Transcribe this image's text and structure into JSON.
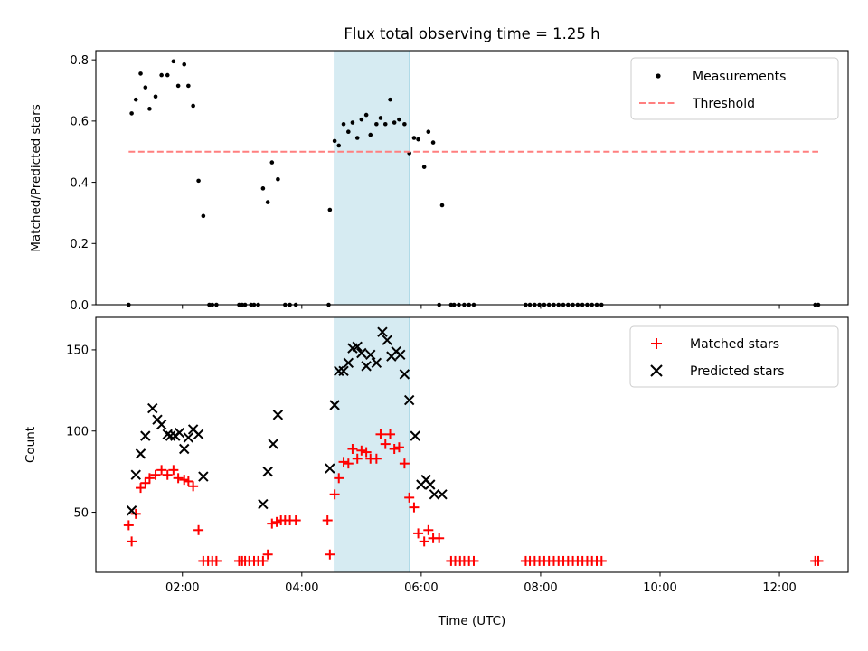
{
  "chart_data": [
    {
      "type": "scatter",
      "title": "Flux total observing time = 1.25 h",
      "xlabel": "",
      "ylabel": "Matched/Predicted stars",
      "xlim": [
        0.55,
        13.15
      ],
      "ylim": [
        0.0,
        0.83
      ],
      "x_ticks": [
        2,
        4,
        6,
        8,
        10,
        12
      ],
      "y_ticks": [
        0.0,
        0.2,
        0.4,
        0.6,
        0.8
      ],
      "y_tick_labels": [
        "0.0",
        "0.2",
        "0.4",
        "0.6",
        "0.8"
      ],
      "shaded_span": [
        4.55,
        5.8
      ],
      "legend_position": "top-right",
      "series": [
        {
          "name": "Measurements",
          "marker": "dot",
          "color": "#000000",
          "points": [
            [
              1.1,
              0.0
            ],
            [
              1.15,
              0.625
            ],
            [
              1.22,
              0.67
            ],
            [
              1.3,
              0.755
            ],
            [
              1.38,
              0.71
            ],
            [
              1.45,
              0.64
            ],
            [
              1.55,
              0.68
            ],
            [
              1.65,
              0.75
            ],
            [
              1.75,
              0.75
            ],
            [
              1.85,
              0.795
            ],
            [
              1.93,
              0.715
            ],
            [
              2.03,
              0.785
            ],
            [
              2.1,
              0.715
            ],
            [
              2.18,
              0.65
            ],
            [
              2.27,
              0.405
            ],
            [
              2.35,
              0.29
            ],
            [
              2.45,
              0.0
            ],
            [
              2.5,
              0.0
            ],
            [
              2.57,
              0.0
            ],
            [
              2.95,
              0.0
            ],
            [
              3.0,
              0.0
            ],
            [
              3.05,
              0.0
            ],
            [
              3.15,
              0.0
            ],
            [
              3.2,
              0.0
            ],
            [
              3.27,
              0.0
            ],
            [
              3.35,
              0.38
            ],
            [
              3.43,
              0.335
            ],
            [
              3.5,
              0.465
            ],
            [
              3.6,
              0.41
            ],
            [
              3.72,
              0.0
            ],
            [
              3.8,
              0.0
            ],
            [
              3.9,
              0.0
            ],
            [
              4.45,
              0.0
            ],
            [
              4.47,
              0.31
            ],
            [
              4.55,
              0.535
            ],
            [
              4.62,
              0.52
            ],
            [
              4.7,
              0.59
            ],
            [
              4.78,
              0.565
            ],
            [
              4.85,
              0.595
            ],
            [
              4.93,
              0.545
            ],
            [
              5.0,
              0.605
            ],
            [
              5.08,
              0.62
            ],
            [
              5.15,
              0.555
            ],
            [
              5.25,
              0.59
            ],
            [
              5.32,
              0.61
            ],
            [
              5.4,
              0.59
            ],
            [
              5.48,
              0.67
            ],
            [
              5.55,
              0.595
            ],
            [
              5.63,
              0.605
            ],
            [
              5.72,
              0.59
            ],
            [
              5.8,
              0.495
            ],
            [
              5.88,
              0.545
            ],
            [
              5.95,
              0.54
            ],
            [
              6.05,
              0.45
            ],
            [
              6.12,
              0.565
            ],
            [
              6.2,
              0.53
            ],
            [
              6.3,
              0.0
            ],
            [
              6.35,
              0.325
            ],
            [
              6.5,
              0.0
            ],
            [
              6.55,
              0.0
            ],
            [
              6.63,
              0.0
            ],
            [
              6.72,
              0.0
            ],
            [
              6.8,
              0.0
            ],
            [
              6.88,
              0.0
            ],
            [
              7.75,
              0.0
            ],
            [
              7.82,
              0.0
            ],
            [
              7.9,
              0.0
            ],
            [
              7.98,
              0.0
            ],
            [
              8.06,
              0.0
            ],
            [
              8.14,
              0.0
            ],
            [
              8.22,
              0.0
            ],
            [
              8.3,
              0.0
            ],
            [
              8.38,
              0.0
            ],
            [
              8.46,
              0.0
            ],
            [
              8.54,
              0.0
            ],
            [
              8.62,
              0.0
            ],
            [
              8.7,
              0.0
            ],
            [
              8.78,
              0.0
            ],
            [
              8.86,
              0.0
            ],
            [
              8.94,
              0.0
            ],
            [
              9.02,
              0.0
            ],
            [
              12.6,
              0.0
            ],
            [
              12.65,
              0.0
            ]
          ]
        },
        {
          "name": "Threshold",
          "marker": "dashed-line",
          "color": "#ff7f7f",
          "points": [
            [
              1.1,
              0.5
            ],
            [
              12.65,
              0.5
            ]
          ]
        }
      ]
    },
    {
      "type": "scatter",
      "title": "",
      "xlabel": "Time (UTC)",
      "ylabel": "Count",
      "xlim": [
        0.55,
        13.15
      ],
      "ylim": [
        13,
        170
      ],
      "x_ticks": [
        2,
        4,
        6,
        8,
        10,
        12
      ],
      "x_tick_labels": [
        "02:00",
        "04:00",
        "06:00",
        "08:00",
        "10:00",
        "12:00"
      ],
      "y_ticks": [
        50,
        100,
        150
      ],
      "y_tick_labels": [
        "50",
        "100",
        "150"
      ],
      "shaded_span": [
        4.55,
        5.8
      ],
      "legend_position": "top-right",
      "series": [
        {
          "name": "Matched stars",
          "marker": "plus",
          "color": "#ff0000",
          "points": [
            [
              1.1,
              42
            ],
            [
              1.15,
              32
            ],
            [
              1.22,
              49
            ],
            [
              1.3,
              65
            ],
            [
              1.38,
              68
            ],
            [
              1.45,
              71
            ],
            [
              1.55,
              73
            ],
            [
              1.65,
              76
            ],
            [
              1.75,
              73
            ],
            [
              1.85,
              76
            ],
            [
              1.93,
              71
            ],
            [
              2.03,
              70
            ],
            [
              2.1,
              69
            ],
            [
              2.18,
              66
            ],
            [
              2.27,
              39
            ],
            [
              2.35,
              20
            ],
            [
              2.43,
              20
            ],
            [
              2.5,
              20
            ],
            [
              2.57,
              20
            ],
            [
              2.95,
              20
            ],
            [
              3.0,
              20
            ],
            [
              3.05,
              20
            ],
            [
              3.12,
              20
            ],
            [
              3.2,
              20
            ],
            [
              3.27,
              20
            ],
            [
              3.35,
              20
            ],
            [
              3.43,
              24
            ],
            [
              3.5,
              43
            ],
            [
              3.58,
              44
            ],
            [
              3.65,
              45
            ],
            [
              3.72,
              45
            ],
            [
              3.8,
              45
            ],
            [
              3.9,
              45
            ],
            [
              4.43,
              45
            ],
            [
              4.47,
              24
            ],
            [
              4.55,
              61
            ],
            [
              4.62,
              71
            ],
            [
              4.7,
              81
            ],
            [
              4.78,
              80
            ],
            [
              4.85,
              89
            ],
            [
              4.93,
              83
            ],
            [
              5.0,
              88
            ],
            [
              5.08,
              87
            ],
            [
              5.15,
              83
            ],
            [
              5.25,
              83
            ],
            [
              5.32,
              98
            ],
            [
              5.4,
              92
            ],
            [
              5.48,
              98
            ],
            [
              5.55,
              89
            ],
            [
              5.63,
              90
            ],
            [
              5.72,
              80
            ],
            [
              5.8,
              59
            ],
            [
              5.88,
              53
            ],
            [
              5.95,
              37
            ],
            [
              6.05,
              32
            ],
            [
              6.12,
              39
            ],
            [
              6.2,
              34
            ],
            [
              6.3,
              34
            ],
            [
              6.5,
              20
            ],
            [
              6.57,
              20
            ],
            [
              6.65,
              20
            ],
            [
              6.72,
              20
            ],
            [
              6.8,
              20
            ],
            [
              6.88,
              20
            ],
            [
              7.75,
              20
            ],
            [
              7.82,
              20
            ],
            [
              7.9,
              20
            ],
            [
              7.98,
              20
            ],
            [
              8.06,
              20
            ],
            [
              8.14,
              20
            ],
            [
              8.22,
              20
            ],
            [
              8.3,
              20
            ],
            [
              8.38,
              20
            ],
            [
              8.46,
              20
            ],
            [
              8.54,
              20
            ],
            [
              8.62,
              20
            ],
            [
              8.7,
              20
            ],
            [
              8.78,
              20
            ],
            [
              8.86,
              20
            ],
            [
              8.94,
              20
            ],
            [
              9.02,
              20
            ],
            [
              12.6,
              20
            ],
            [
              12.65,
              20
            ]
          ]
        },
        {
          "name": "Predicted stars",
          "marker": "x",
          "color": "#000000",
          "points": [
            [
              1.15,
              51
            ],
            [
              1.22,
              73
            ],
            [
              1.3,
              86
            ],
            [
              1.38,
              97
            ],
            [
              1.5,
              114
            ],
            [
              1.58,
              107
            ],
            [
              1.65,
              104
            ],
            [
              1.75,
              98
            ],
            [
              1.8,
              97
            ],
            [
              1.88,
              97
            ],
            [
              1.95,
              99
            ],
            [
              2.03,
              89
            ],
            [
              2.1,
              96
            ],
            [
              2.18,
              101
            ],
            [
              2.27,
              98
            ],
            [
              2.35,
              72
            ],
            [
              3.35,
              55
            ],
            [
              3.43,
              75
            ],
            [
              3.52,
              92
            ],
            [
              3.6,
              110
            ],
            [
              4.47,
              77
            ],
            [
              4.55,
              116
            ],
            [
              4.62,
              137
            ],
            [
              4.7,
              137
            ],
            [
              4.78,
              142
            ],
            [
              4.85,
              151
            ],
            [
              4.93,
              152
            ],
            [
              5.0,
              148
            ],
            [
              5.08,
              140
            ],
            [
              5.15,
              147
            ],
            [
              5.25,
              142
            ],
            [
              5.35,
              161
            ],
            [
              5.43,
              156
            ],
            [
              5.5,
              146
            ],
            [
              5.58,
              149
            ],
            [
              5.65,
              147
            ],
            [
              5.72,
              135
            ],
            [
              5.8,
              119
            ],
            [
              5.9,
              97
            ],
            [
              6.0,
              67
            ],
            [
              6.08,
              70
            ],
            [
              6.15,
              67
            ],
            [
              6.22,
              61
            ],
            [
              6.35,
              61
            ]
          ]
        }
      ]
    }
  ]
}
